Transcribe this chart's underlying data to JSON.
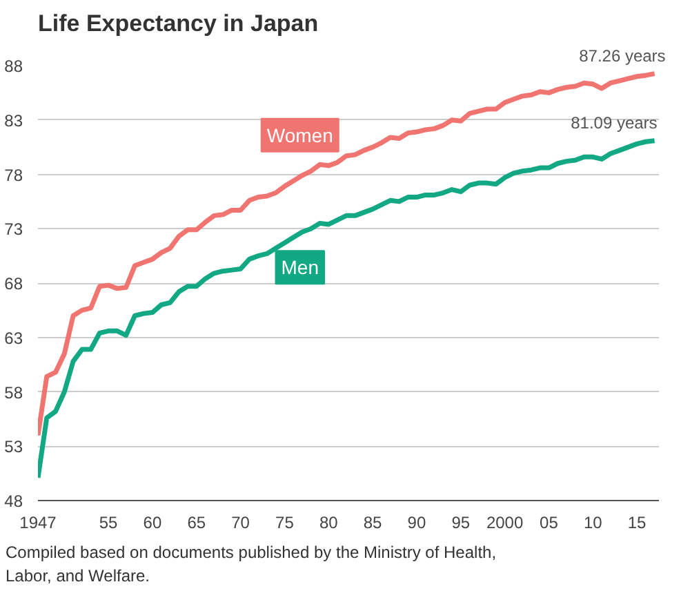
{
  "chart_data": {
    "type": "line",
    "title": "Life Expectancy in Japan",
    "x": [
      1947,
      1948,
      1949,
      1950,
      1951,
      1952,
      1953,
      1954,
      1955,
      1956,
      1957,
      1958,
      1959,
      1960,
      1961,
      1962,
      1963,
      1964,
      1965,
      1966,
      1967,
      1968,
      1969,
      1970,
      1971,
      1972,
      1973,
      1974,
      1975,
      1976,
      1977,
      1978,
      1979,
      1980,
      1981,
      1982,
      1983,
      1984,
      1985,
      1986,
      1987,
      1988,
      1989,
      1990,
      1991,
      1992,
      1993,
      1994,
      1995,
      1996,
      1997,
      1998,
      1999,
      2000,
      2001,
      2002,
      2003,
      2004,
      2005,
      2006,
      2007,
      2008,
      2009,
      2010,
      2011,
      2012,
      2013,
      2014,
      2015,
      2016,
      2017
    ],
    "series": [
      {
        "name": "Women",
        "color": "#f07470",
        "values": [
          54.0,
          59.4,
          59.8,
          61.5,
          65.0,
          65.5,
          65.7,
          67.7,
          67.8,
          67.5,
          67.6,
          69.6,
          69.9,
          70.2,
          70.8,
          71.2,
          72.3,
          72.9,
          72.9,
          73.6,
          74.2,
          74.3,
          74.7,
          74.7,
          75.6,
          75.9,
          76.0,
          76.3,
          76.9,
          77.4,
          77.9,
          78.3,
          78.9,
          78.8,
          79.1,
          79.7,
          79.8,
          80.2,
          80.5,
          80.9,
          81.4,
          81.3,
          81.8,
          81.9,
          82.1,
          82.2,
          82.5,
          83.0,
          82.9,
          83.6,
          83.8,
          84.0,
          84.0,
          84.6,
          84.9,
          85.2,
          85.3,
          85.6,
          85.5,
          85.8,
          86.0,
          86.1,
          86.4,
          86.3,
          85.9,
          86.4,
          86.6,
          86.8,
          87.0,
          87.1,
          87.26
        ]
      },
      {
        "name": "Men",
        "color": "#12a883",
        "values": [
          50.1,
          55.6,
          56.2,
          58.0,
          60.8,
          61.9,
          61.9,
          63.4,
          63.6,
          63.6,
          63.2,
          65.0,
          65.2,
          65.3,
          66.0,
          66.2,
          67.2,
          67.7,
          67.7,
          68.4,
          68.9,
          69.1,
          69.2,
          69.3,
          70.2,
          70.5,
          70.7,
          71.2,
          71.7,
          72.2,
          72.7,
          73.0,
          73.5,
          73.4,
          73.8,
          74.2,
          74.2,
          74.5,
          74.8,
          75.2,
          75.6,
          75.5,
          75.9,
          75.9,
          76.1,
          76.1,
          76.3,
          76.6,
          76.4,
          77.0,
          77.2,
          77.2,
          77.1,
          77.7,
          78.1,
          78.3,
          78.4,
          78.6,
          78.6,
          79.0,
          79.2,
          79.3,
          79.6,
          79.6,
          79.4,
          79.9,
          80.2,
          80.5,
          80.8,
          81.0,
          81.09
        ]
      }
    ],
    "xlim": [
      1947,
      2017.5
    ],
    "xticks": [
      1947,
      {
        "value": 1955,
        "label": "55"
      },
      {
        "value": 1960,
        "label": "60"
      },
      {
        "value": 1965,
        "label": "65"
      },
      {
        "value": 1970,
        "label": "70"
      },
      {
        "value": 1975,
        "label": "75"
      },
      {
        "value": 1980,
        "label": "80"
      },
      {
        "value": 1985,
        "label": "85"
      },
      {
        "value": 1990,
        "label": "90"
      },
      {
        "value": 1995,
        "label": "95"
      },
      2000,
      {
        "value": 2005,
        "label": "05"
      },
      {
        "value": 2010,
        "label": "10"
      },
      {
        "value": 2015,
        "label": "15"
      }
    ],
    "ylim": [
      48,
      88
    ],
    "yticks": [
      48,
      53,
      58,
      63,
      68,
      73,
      78,
      83,
      88
    ],
    "grid": "y",
    "legend": false,
    "line_style": "solid",
    "annotations": [
      {
        "text": "87.26 years",
        "x": 2017,
        "y": 87.26
      },
      {
        "text": "81.09 years",
        "x": 2017,
        "y": 81.09
      },
      "Compiled based on documents published by the Ministry of Health, Labor, and Welfare."
    ]
  }
}
